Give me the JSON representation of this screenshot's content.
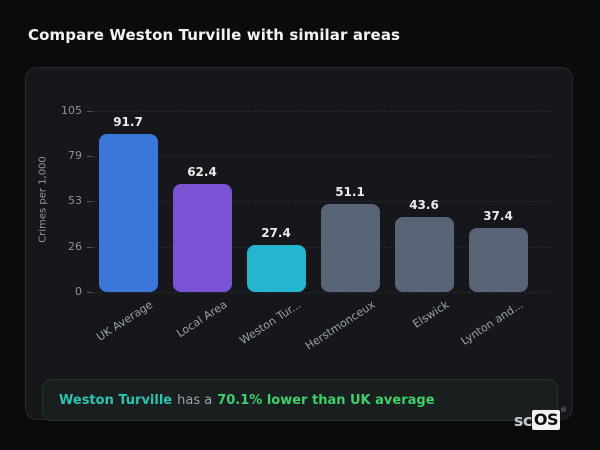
{
  "page": {
    "title": "Compare Weston Turville with similar areas"
  },
  "chart_data": {
    "type": "bar",
    "title": "Compare Weston Turville with similar areas",
    "categories": [
      "UK Average",
      "Local Area",
      "Weston Tur...",
      "Herstmonceux",
      "Elswick",
      "Lynton and..."
    ],
    "values": [
      91.7,
      62.4,
      27.4,
      51.1,
      43.6,
      37.4
    ],
    "value_labels": [
      "91.7",
      "62.4",
      "27.4",
      "51.1",
      "43.6",
      "37.4"
    ],
    "xlabel": "",
    "ylabel": "Crimes per 1,000",
    "yticks": [
      0,
      26,
      53,
      79,
      105
    ],
    "ylim": [
      0,
      105
    ],
    "grid": "horizontal-dashed",
    "legend": "none",
    "bar_colors": [
      "#3b76d9",
      "#7a52d4",
      "#26b5ce",
      "#5a6477",
      "#5a6477",
      "#5a6477"
    ]
  },
  "note": {
    "area_name": "Weston Turville",
    "middle": "has a",
    "stat": "70.1% lower than UK average",
    "area_color": "#2bc4b2",
    "stat_color": "#3ecf6e"
  },
  "watermark": {
    "prefix": "sc",
    "suffix": "OS",
    "registered": "®"
  }
}
